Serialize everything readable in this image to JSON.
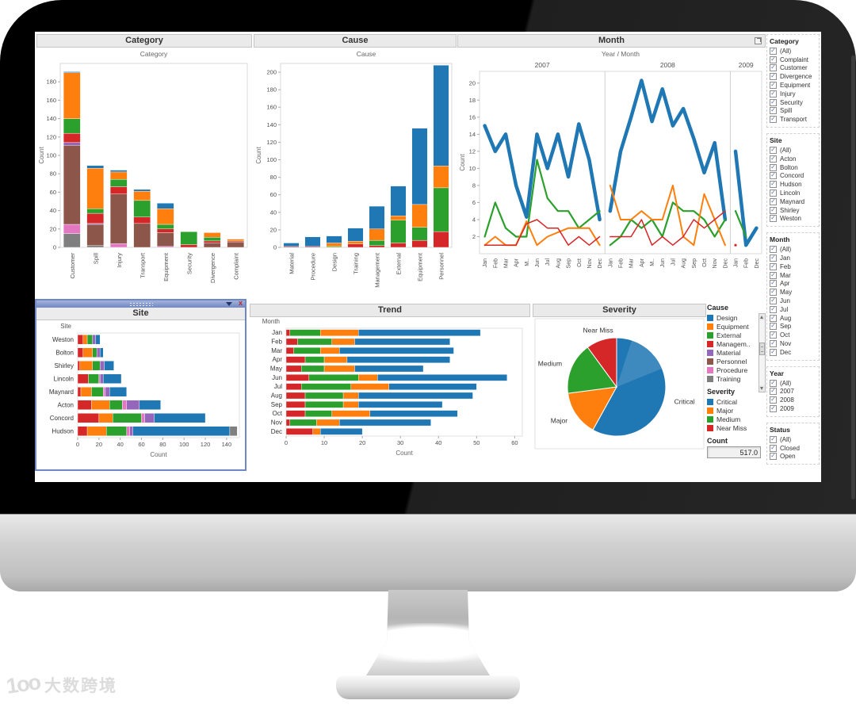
{
  "watermark": {
    "logo": "1oo",
    "text": "大数跨境"
  },
  "colors": {
    "Critical": "#1f77b4",
    "Major": "#ff7f0e",
    "Medium": "#2ca02c",
    "Near Miss": "#d62728",
    "Design": "#1f77b4",
    "Equipment": "#ff7f0e",
    "External": "#2ca02c",
    "Management": "#d62728",
    "Material": "#9467bd",
    "Personnel": "#8c564b",
    "Procedure": "#e377c2",
    "Training": "#7f7f7f"
  },
  "filters": [
    {
      "title": "Category",
      "items": [
        "(All)",
        "Complaint",
        "Customer",
        "Divergence",
        "Equipment",
        "Injury",
        "Security",
        "Spill",
        "Transport"
      ]
    },
    {
      "title": "Site",
      "items": [
        "(All)",
        "Acton",
        "Bolton",
        "Concord",
        "Hudson",
        "Lincoln",
        "Maynard",
        "Shirley",
        "Weston"
      ]
    },
    {
      "title": "Month",
      "items": [
        "(All)",
        "Jan",
        "Feb",
        "Mar",
        "Apr",
        "May",
        "Jun",
        "Jul",
        "Aug",
        "Sep",
        "Oct",
        "Nov",
        "Dec"
      ]
    },
    {
      "title": "Year",
      "items": [
        "(All)",
        "2007",
        "2008",
        "2009"
      ]
    },
    {
      "title": "Status",
      "items": [
        "(All)",
        "Closed",
        "Open"
      ]
    }
  ],
  "filter_check_glyph": "✓",
  "legends": {
    "cause": {
      "title": "Cause",
      "items": [
        {
          "label": "Design",
          "color": "#1f77b4"
        },
        {
          "label": "Equipment",
          "color": "#ff7f0e"
        },
        {
          "label": "External",
          "color": "#2ca02c"
        },
        {
          "label": "Managem..",
          "color": "#d62728"
        },
        {
          "label": "Material",
          "color": "#9467bd"
        },
        {
          "label": "Personnel",
          "color": "#8c564b"
        },
        {
          "label": "Procedure",
          "color": "#e377c2"
        },
        {
          "label": "Training",
          "color": "#7f7f7f"
        }
      ]
    },
    "severity": {
      "title": "Severity",
      "items": [
        {
          "label": "Critical",
          "color": "#1f77b4"
        },
        {
          "label": "Major",
          "color": "#ff7f0e"
        },
        {
          "label": "Medium",
          "color": "#2ca02c"
        },
        {
          "label": "Near Miss",
          "color": "#d62728"
        }
      ]
    }
  },
  "count": {
    "label": "Count",
    "value": "517.0"
  },
  "site_window_controls": {
    "close_glyph": "x"
  },
  "chart_data": [
    {
      "id": "category",
      "type": "bar",
      "stacked": true,
      "title": "Category",
      "axis_title": "Category",
      "ylabel": "Count",
      "ylim": [
        0,
        200
      ],
      "yticks": [
        0,
        20,
        40,
        60,
        80,
        100,
        120,
        140,
        160,
        180
      ],
      "categories": [
        "Customer",
        "Spill",
        "Injury",
        "Transport",
        "Equipment",
        "Security",
        "Divergence",
        "Complaint"
      ],
      "series": [
        {
          "name": "Training",
          "values": [
            15,
            2,
            0,
            0,
            0,
            0,
            0,
            0
          ]
        },
        {
          "name": "Procedure",
          "values": [
            10,
            0,
            4,
            0,
            1,
            0,
            0,
            0
          ]
        },
        {
          "name": "Personnel",
          "values": [
            86,
            23,
            54,
            26,
            15,
            0,
            5,
            6
          ]
        },
        {
          "name": "Material",
          "values": [
            3,
            1,
            0,
            0,
            0,
            0,
            0,
            0
          ]
        },
        {
          "name": "Management",
          "values": [
            10,
            11,
            8,
            7,
            4,
            3,
            2,
            1
          ]
        },
        {
          "name": "External",
          "values": [
            16,
            5,
            8,
            18,
            5,
            14,
            4,
            0
          ]
        },
        {
          "name": "Equipment",
          "values": [
            50,
            44,
            8,
            10,
            17,
            0,
            5,
            2
          ]
        },
        {
          "name": "Design",
          "values": [
            1,
            3,
            2,
            2,
            6,
            0,
            0,
            0
          ]
        }
      ]
    },
    {
      "id": "cause",
      "type": "bar",
      "stacked": true,
      "title": "Cause",
      "axis_title": "Cause",
      "ylabel": "Count",
      "ylim": [
        0,
        210
      ],
      "yticks": [
        0,
        20,
        40,
        60,
        80,
        100,
        120,
        140,
        160,
        180,
        200
      ],
      "categories": [
        "Material",
        "Procedure",
        "Design",
        "Training",
        "Management",
        "External",
        "Equipment",
        "Personnel"
      ],
      "series": [
        {
          "name": "Near Miss",
          "values": [
            1,
            1,
            0,
            4,
            2,
            5,
            8,
            18
          ]
        },
        {
          "name": "Medium",
          "values": [
            0,
            0,
            1,
            0,
            6,
            26,
            15,
            50
          ]
        },
        {
          "name": "Major",
          "values": [
            0,
            0,
            4,
            3,
            13,
            5,
            26,
            25
          ]
        },
        {
          "name": "Critical",
          "values": [
            4,
            11,
            8,
            15,
            26,
            34,
            87,
            115
          ]
        }
      ]
    },
    {
      "id": "month",
      "type": "line",
      "title": "Month",
      "axis_title": "Year  /  Month",
      "ylabel": "Count",
      "ylim": [
        0,
        21
      ],
      "yticks": [
        2,
        4,
        6,
        8,
        10,
        12,
        14,
        16,
        18,
        20
      ],
      "panels": [
        {
          "year": "2007",
          "months": [
            "Jan",
            "Feb",
            "Mar",
            "Apr",
            "M..",
            "Jun",
            "Jul",
            "Aug",
            "Sep",
            "Oct",
            "Nov",
            "Dec"
          ],
          "series": [
            {
              "name": "Critical",
              "values": [
                15,
                12,
                14,
                8,
                4.3,
                14,
                10,
                14,
                9,
                15.2,
                11,
                4
              ]
            },
            {
              "name": "Medium",
              "values": [
                2,
                6,
                3,
                2,
                2,
                11,
                6.5,
                5,
                5,
                3,
                4,
                5
              ]
            },
            {
              "name": "Major",
              "values": [
                1,
                2,
                1,
                1,
                3.8,
                1,
                2,
                2.5,
                3,
                3,
                3,
                1
              ]
            },
            {
              "name": "Near Miss",
              "values": [
                1,
                1,
                1,
                1,
                3.5,
                4,
                3,
                3,
                1,
                2,
                1,
                2
              ]
            }
          ]
        },
        {
          "year": "2008",
          "months": [
            "Jan",
            "Feb",
            "Mar",
            "Apr",
            "M..",
            "Jun",
            "Jul",
            "Aug",
            "Sep",
            "Oct",
            "Nov",
            "Dec"
          ],
          "series": [
            {
              "name": "Critical",
              "values": [
                5,
                12,
                16,
                20.3,
                15.5,
                19.3,
                15,
                17,
                13.5,
                9.5,
                13,
                4
              ]
            },
            {
              "name": "Medium",
              "values": [
                1,
                2,
                4,
                3,
                4,
                2,
                6,
                5,
                5,
                4,
                2,
                4
              ]
            },
            {
              "name": "Major",
              "values": [
                8,
                4,
                4,
                5,
                4,
                4,
                8,
                2,
                1,
                7,
                4,
                1
              ]
            },
            {
              "name": "Near Miss",
              "values": [
                2,
                2,
                2,
                4,
                1,
                2,
                1,
                2,
                4,
                3,
                4,
                5
              ]
            }
          ]
        },
        {
          "year": "2009",
          "months": [
            "Jan",
            "Feb",
            "Dec"
          ],
          "series": [
            {
              "name": "Critical",
              "values": [
                12,
                1,
                3
              ]
            },
            {
              "name": "Medium",
              "values": [
                5,
                2,
                null
              ]
            },
            {
              "name": "Near Miss",
              "values": [
                1,
                null,
                null
              ]
            }
          ]
        }
      ]
    },
    {
      "id": "site",
      "type": "bar-h",
      "stacked": true,
      "title": "Site",
      "row_header": "Site",
      "xlabel": "Count",
      "xlim": [
        0,
        152
      ],
      "xticks": [
        0,
        20,
        40,
        60,
        80,
        100,
        120,
        140
      ],
      "categories": [
        "Weston",
        "Bolton",
        "Shirley",
        "Lincoln",
        "Maynard",
        "Acton",
        "Concord",
        "Hudson"
      ],
      "series": [
        {
          "name": "Management",
          "values": [
            5,
            5,
            2,
            10,
            3,
            13,
            20,
            9
          ]
        },
        {
          "name": "Equipment",
          "values": [
            4,
            9,
            12,
            0,
            10,
            17,
            13,
            18
          ]
        },
        {
          "name": "External",
          "values": [
            5,
            4,
            7,
            10,
            11,
            12,
            27,
            19
          ]
        },
        {
          "name": "Procedure",
          "values": [
            0,
            0,
            0,
            1,
            2,
            4,
            3,
            3
          ]
        },
        {
          "name": "Material",
          "values": [
            3,
            3,
            4,
            3,
            4,
            12,
            9,
            3
          ]
        },
        {
          "name": "Design",
          "values": [
            4,
            3,
            9,
            17,
            16,
            20,
            48,
            91
          ]
        },
        {
          "name": "Training",
          "values": [
            0,
            0,
            0,
            0,
            0,
            0,
            0,
            7
          ]
        }
      ]
    },
    {
      "id": "trend",
      "type": "bar-h",
      "stacked": true,
      "title": "Trend",
      "row_header": "Month",
      "xlabel": "Count",
      "xlim": [
        0,
        62
      ],
      "xticks": [
        0,
        10,
        20,
        30,
        40,
        50,
        60
      ],
      "categories": [
        "Jan",
        "Feb",
        "Mar",
        "Apr",
        "May",
        "Jun",
        "Jul",
        "Aug",
        "Sep",
        "Oct",
        "Nov",
        "Dec"
      ],
      "series": [
        {
          "name": "Near Miss",
          "values": [
            1,
            3,
            2,
            5,
            4,
            6,
            4,
            5,
            5,
            5,
            1,
            7
          ]
        },
        {
          "name": "Medium",
          "values": [
            8,
            9,
            7,
            5,
            6,
            13,
            13,
            10,
            10,
            7,
            7,
            0
          ]
        },
        {
          "name": "Major",
          "values": [
            10,
            6,
            5,
            6,
            8,
            5,
            10,
            4,
            4,
            10,
            6,
            2
          ]
        },
        {
          "name": "Critical",
          "values": [
            32,
            25,
            30,
            27,
            18,
            34,
            23,
            30,
            22,
            23,
            24,
            11
          ]
        }
      ]
    },
    {
      "id": "severity",
      "type": "pie",
      "title": "Severity",
      "total": 517,
      "slices": [
        {
          "label": "Critical",
          "value": 300
        },
        {
          "label": "Major",
          "value": 77
        },
        {
          "label": "Medium",
          "value": 88
        },
        {
          "label": "Near Miss",
          "value": 52
        }
      ]
    }
  ]
}
